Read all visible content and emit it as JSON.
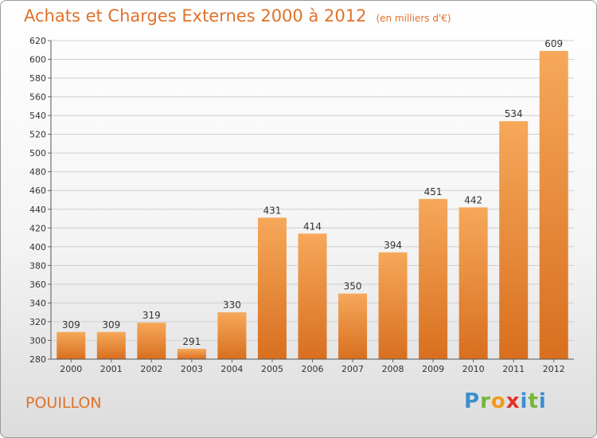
{
  "header": {
    "title": "Achats et Charges Externes 2000 à 2012",
    "unit": "(en milliers d'€)"
  },
  "footer": {
    "place": "POUILLON",
    "logo": "Proxiti"
  },
  "colors": {
    "title": "#e0712a",
    "bar_top": "#f6a85a",
    "bar_bottom": "#d86f1f",
    "grid": "#cfcfcf"
  },
  "chart_data": {
    "type": "bar",
    "categories": [
      "2000",
      "2001",
      "2002",
      "2003",
      "2004",
      "2005",
      "2006",
      "2007",
      "2008",
      "2009",
      "2010",
      "2011",
      "2012"
    ],
    "values": [
      309,
      309,
      319,
      291,
      330,
      431,
      414,
      350,
      394,
      451,
      442,
      534,
      609
    ],
    "ylim": [
      280,
      620
    ],
    "yticks": [
      280,
      300,
      320,
      340,
      360,
      380,
      400,
      420,
      440,
      460,
      480,
      500,
      520,
      540,
      560,
      580,
      600,
      620
    ],
    "grid": true
  }
}
